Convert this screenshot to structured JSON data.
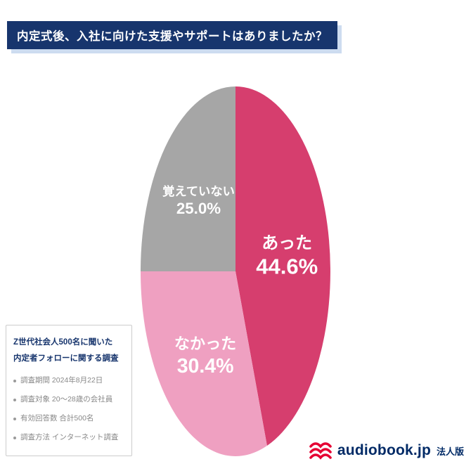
{
  "header": {
    "title": "内定式後、入社に向けた支援やサポートはありましたか？"
  },
  "chart_data": {
    "type": "pie",
    "title": "内定式後、入社に向けた支援やサポートはありましたか？",
    "labels": [
      "あった",
      "なかった",
      "覚えていない"
    ],
    "values": [
      44.6,
      30.4,
      25.0
    ],
    "colors": [
      "#d63e6e",
      "#efa0c1",
      "#a6a6a6"
    ],
    "start_angle_deg": 0,
    "direction": "clockwise",
    "value_suffix": "%",
    "legend_position": "none",
    "labels_inside": true
  },
  "info_box": {
    "title_lines": [
      "Z世代社会人500名に聞いた",
      "内定者フォローに関する調査"
    ],
    "bullets": [
      "調査期間 2024年8月22日",
      "調査対象 20〜28歳の会社員",
      "有効回答数 合計500名",
      "調査方法 インターネット調査"
    ]
  },
  "logo": {
    "brand": "audiobook.jp",
    "edition": "法人版",
    "icon": "audiobook-waves-icon",
    "icon_color": "#e60033",
    "text_color": "#002a66"
  }
}
